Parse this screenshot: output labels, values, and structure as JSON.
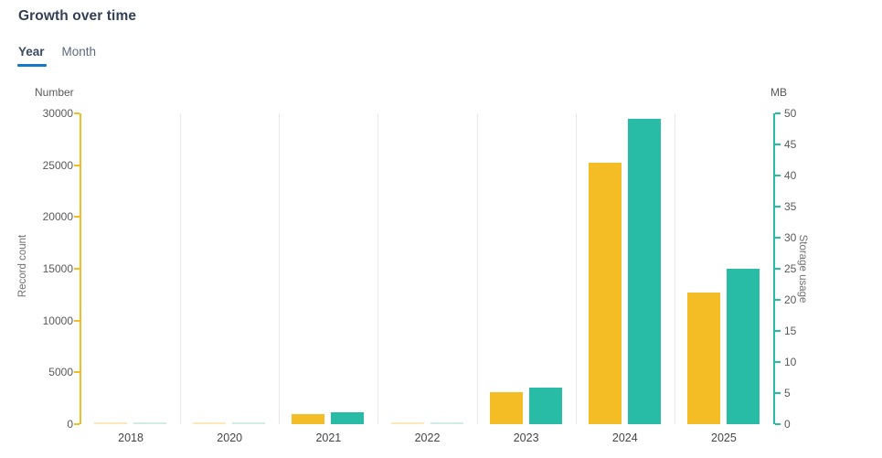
{
  "header": {
    "title": "Growth over time"
  },
  "tabs": [
    {
      "label": "Year",
      "active": true
    },
    {
      "label": "Month",
      "active": false
    }
  ],
  "colors": {
    "accent_blue": "#1878C8",
    "record_count": "#F4BC25",
    "record_count_faint": "#FBE9BC",
    "storage_usage": "#28BBA6",
    "storage_usage_faint": "#CEEBE6",
    "grid_line": "#E9E9E9",
    "axis_text": "#595959"
  },
  "chart_data": {
    "type": "bar",
    "title": "Growth over time",
    "categories": [
      "2018",
      "2020",
      "2021",
      "2022",
      "2023",
      "2024",
      "2025"
    ],
    "series": [
      {
        "name": "Record count",
        "axis": "left",
        "unit": "Number",
        "color": "#F4BC25",
        "values": [
          50,
          50,
          1000,
          50,
          3100,
          25200,
          12700
        ]
      },
      {
        "name": "Storage usage",
        "axis": "right",
        "unit": "MB",
        "color": "#28BBA6",
        "values": [
          0.1,
          0.1,
          1.9,
          0.1,
          5.9,
          49.1,
          25
        ]
      }
    ],
    "left_axis": {
      "title": "Number",
      "label": "Record count",
      "max": 30000,
      "ticks": [
        0,
        5000,
        10000,
        15000,
        20000,
        25000,
        30000
      ],
      "color": "#F4BC25"
    },
    "right_axis": {
      "title": "MB",
      "label": "Storage usage",
      "max": 50,
      "ticks": [
        0,
        5,
        10,
        15,
        20,
        25,
        30,
        35,
        40,
        45,
        50
      ],
      "color": "#28BBA6"
    },
    "grid": "vertical category separators",
    "legend": "none"
  }
}
